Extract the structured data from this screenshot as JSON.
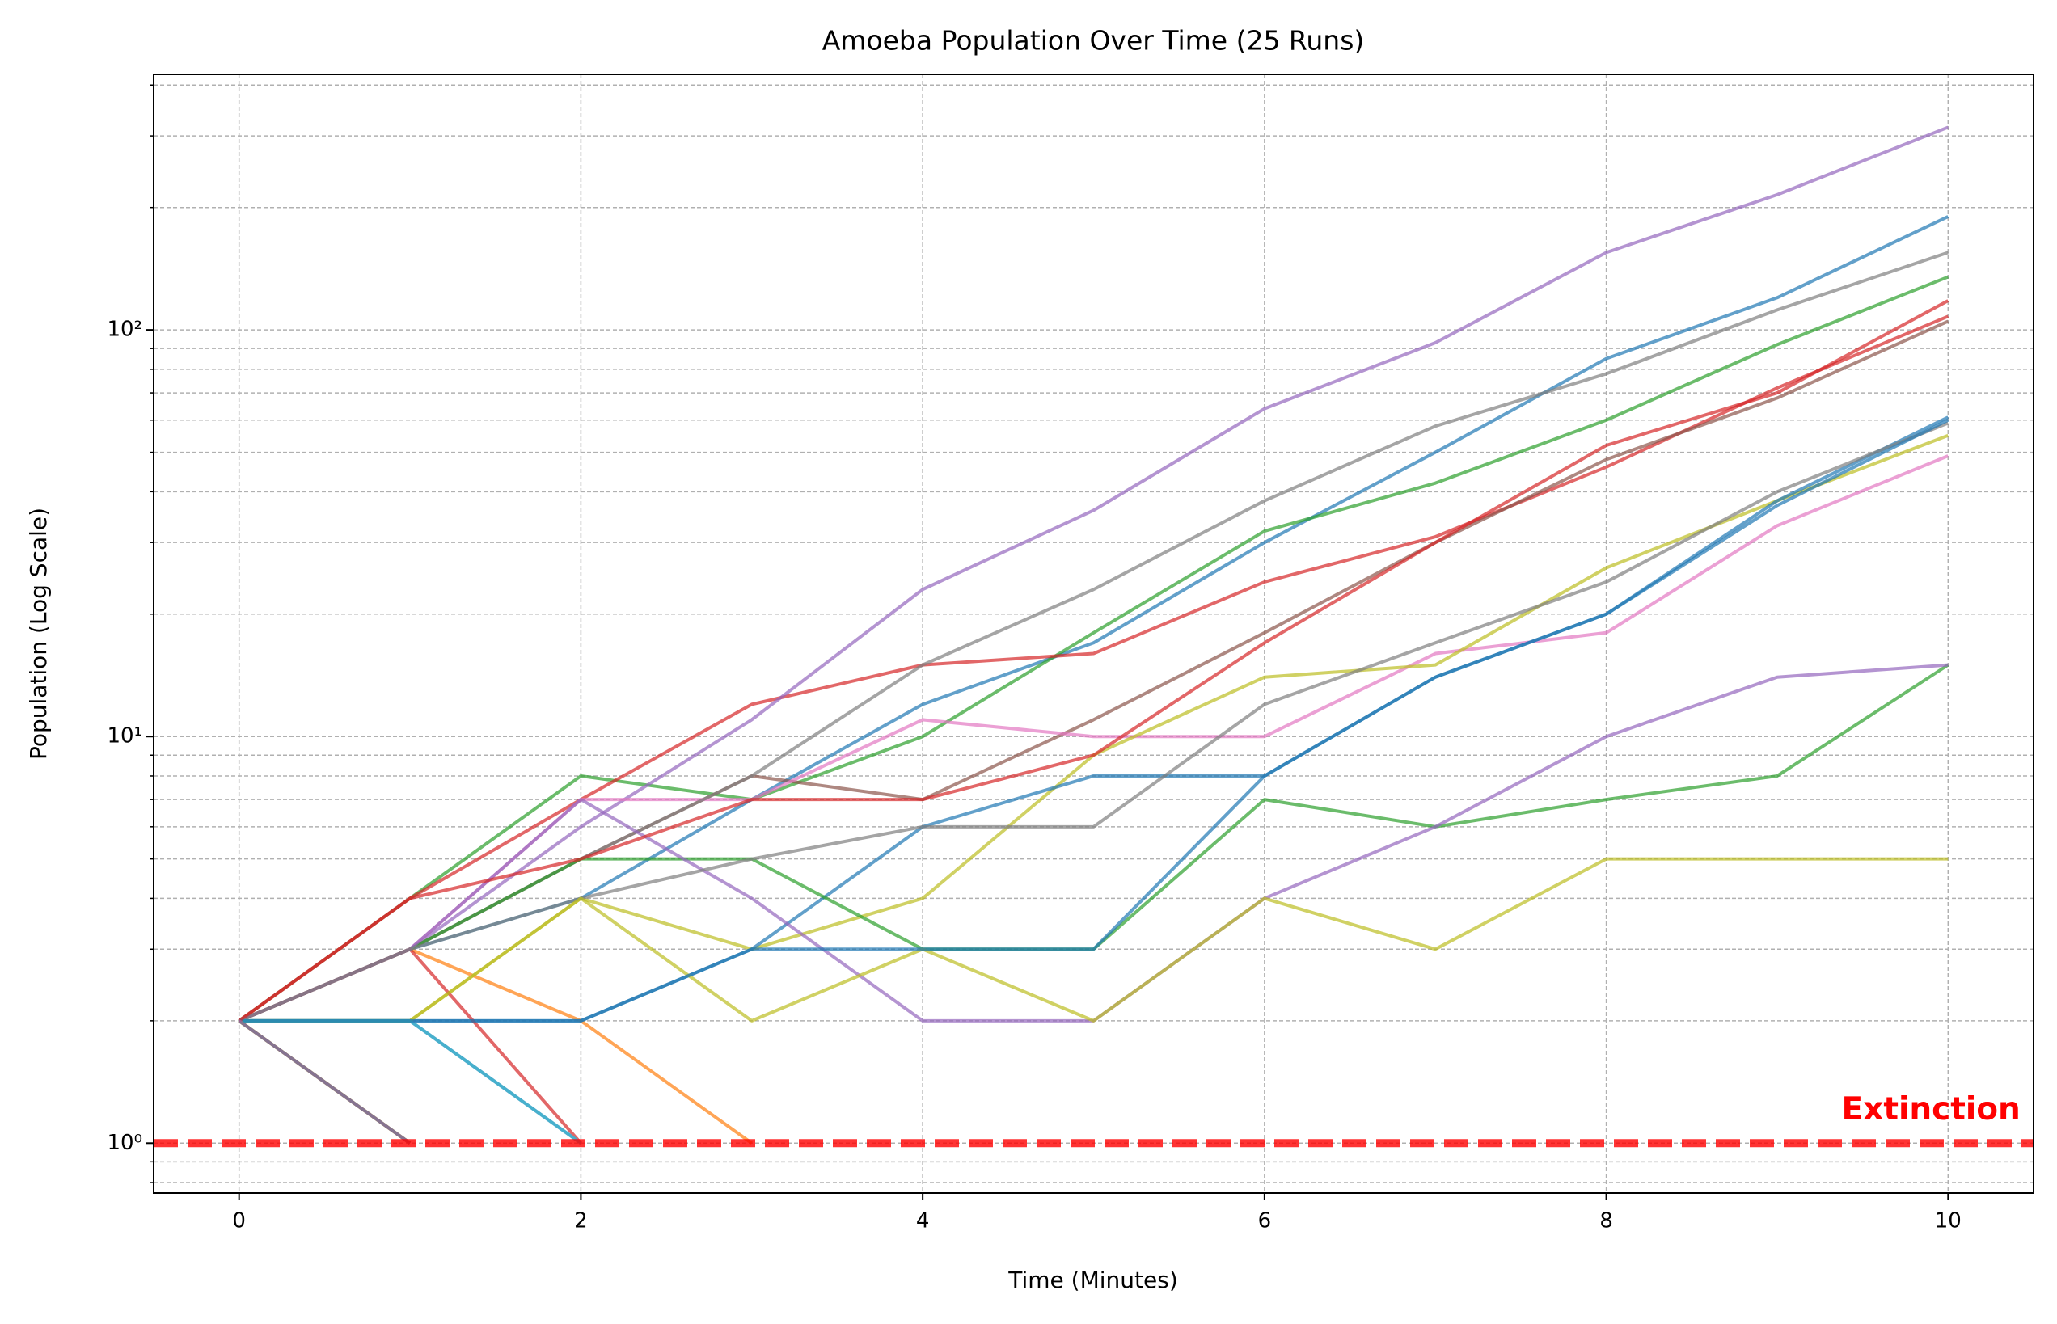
{
  "chart_data": {
    "type": "line",
    "title": "Amoeba Population Over Time (25 Runs)",
    "x_label": "Time (Minutes)",
    "y_label": "Population (Log Scale)",
    "x": [
      0,
      1,
      2,
      3,
      4,
      5,
      6,
      7,
      8,
      9,
      10
    ],
    "xlim": [
      -0.5,
      10.5
    ],
    "xticks": [
      0,
      2,
      4,
      6,
      8,
      10
    ],
    "ylim": [
      0.754,
      425
    ],
    "log_y": true,
    "yticks": [
      {
        "value": 1,
        "label": "10⁰"
      },
      {
        "value": 10,
        "label": "10¹"
      },
      {
        "value": 100,
        "label": "10²"
      }
    ],
    "yminorticks": [
      0.8,
      0.9,
      2,
      3,
      4,
      5,
      6,
      7,
      8,
      9,
      20,
      30,
      40,
      50,
      60,
      70,
      80,
      90,
      200,
      300,
      400
    ],
    "grid": true,
    "series": [
      {
        "color": "#1f77b4",
        "values": [
          2,
          3,
          4,
          7,
          12,
          17,
          30,
          50,
          85,
          120,
          190
        ]
      },
      {
        "color": "#ff7f0e",
        "values": [
          2,
          3,
          2,
          1,
          null,
          null,
          null,
          null,
          null,
          null,
          null
        ]
      },
      {
        "color": "#2ca02c",
        "values": [
          2,
          4,
          8,
          7,
          10,
          18,
          32,
          42,
          60,
          92,
          135
        ]
      },
      {
        "color": "#d62728",
        "values": [
          2,
          4,
          7,
          12,
          15,
          16,
          24,
          31,
          46,
          72,
          108
        ]
      },
      {
        "color": "#9467bd",
        "values": [
          2,
          3,
          6,
          11,
          23,
          36,
          64,
          93,
          155,
          215,
          315
        ]
      },
      {
        "color": "#8c564b",
        "values": [
          2,
          3,
          5,
          8,
          7,
          11,
          18,
          30,
          48,
          68,
          105
        ]
      },
      {
        "color": "#e377c2",
        "values": [
          2,
          3,
          7,
          7,
          11,
          10,
          10,
          16,
          18,
          33,
          49
        ]
      },
      {
        "color": "#7f7f7f",
        "values": [
          2,
          3,
          5,
          8,
          15,
          23,
          38,
          58,
          78,
          112,
          155
        ]
      },
      {
        "color": "#bcbd22",
        "values": [
          2,
          2,
          4,
          3,
          4,
          9,
          14,
          15,
          26,
          38,
          55
        ]
      },
      {
        "color": "#17becf",
        "values": [
          2,
          2,
          1,
          null,
          null,
          null,
          null,
          null,
          null,
          null,
          null
        ]
      },
      {
        "color": "#1f77b4",
        "values": [
          2,
          2,
          2,
          3,
          6,
          8,
          8,
          14,
          20,
          38,
          61
        ]
      },
      {
        "color": "#ff7f0e",
        "values": [
          2,
          1,
          null,
          null,
          null,
          null,
          null,
          null,
          null,
          null,
          null
        ]
      },
      {
        "color": "#2ca02c",
        "values": [
          2,
          3,
          5,
          5,
          3,
          3,
          7,
          6,
          7,
          8,
          15
        ]
      },
      {
        "color": "#d62728",
        "values": [
          2,
          3,
          1,
          null,
          null,
          null,
          null,
          null,
          null,
          null,
          null
        ]
      },
      {
        "color": "#9467bd",
        "values": [
          2,
          3,
          7,
          4,
          2,
          2,
          4,
          6,
          10,
          14,
          15
        ]
      },
      {
        "color": "#8c564b",
        "values": [
          2,
          1,
          null,
          null,
          null,
          null,
          null,
          null,
          null,
          null,
          null
        ]
      },
      {
        "color": "#e377c2",
        "values": [
          2,
          2,
          1,
          null,
          null,
          null,
          null,
          null,
          null,
          null,
          null
        ]
      },
      {
        "color": "#7f7f7f",
        "values": [
          2,
          3,
          4,
          5,
          6,
          6,
          12,
          17,
          24,
          40,
          59
        ]
      },
      {
        "color": "#bcbd22",
        "values": [
          2,
          2,
          4,
          2,
          3,
          2,
          4,
          3,
          5,
          5,
          5
        ]
      },
      {
        "color": "#17becf",
        "values": [
          2,
          2,
          1,
          null,
          null,
          null,
          null,
          null,
          null,
          null,
          null
        ]
      },
      {
        "color": "#1f77b4",
        "values": [
          2,
          2,
          2,
          3,
          3,
          3,
          8,
          14,
          20,
          37,
          60
        ]
      },
      {
        "color": "#ff7f0e",
        "values": [
          2,
          1,
          null,
          null,
          null,
          null,
          null,
          null,
          null,
          null,
          null
        ]
      },
      {
        "color": "#2ca02c",
        "values": [
          2,
          1,
          null,
          null,
          null,
          null,
          null,
          null,
          null,
          null,
          null
        ]
      },
      {
        "color": "#d62728",
        "values": [
          2,
          4,
          5,
          7,
          7,
          9,
          17,
          30,
          52,
          70,
          118
        ]
      },
      {
        "color": "#9467bd",
        "values": [
          2,
          1,
          null,
          null,
          null,
          null,
          null,
          null,
          null,
          null,
          null
        ]
      }
    ],
    "hline": {
      "value": 1,
      "color": "#ff0000"
    },
    "annotation": {
      "text": "Extinction",
      "x": 9.9,
      "y": 1.2,
      "color": "#ff0000"
    }
  }
}
